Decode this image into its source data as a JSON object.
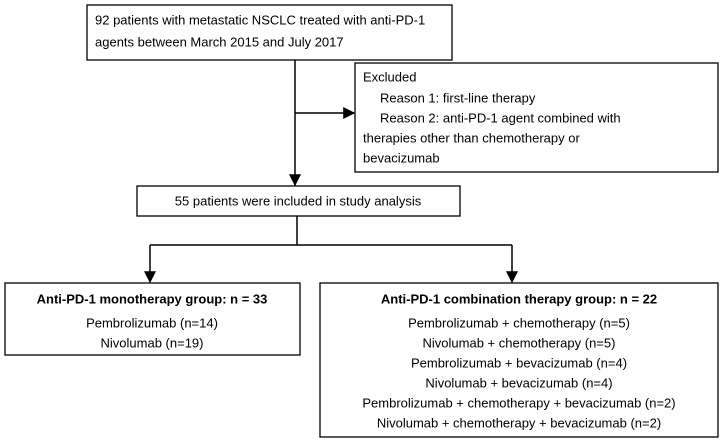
{
  "enrolled": {
    "lines": [
      "92 patients with metastatic NSCLC treated with anti-PD-1",
      "agents between March 2015 and July 2017"
    ]
  },
  "excluded": {
    "title": "Excluded",
    "reasons": [
      "Reason 1: first-line therapy",
      "Reason 2: anti-PD-1 agent combined with"
    ],
    "continuation": [
      "therapies other than chemotherapy or",
      "bevacizumab"
    ]
  },
  "included": {
    "label": "55 patients were included in study analysis"
  },
  "groups": [
    {
      "title": "Anti-PD-1 monotherapy group: n = 33",
      "items": [
        "Pembrolizumab (n=14)",
        "Nivolumab (n=19)"
      ]
    },
    {
      "title": "Anti-PD-1 combination therapy group: n = 22",
      "items": [
        "Pembrolizumab + chemotherapy (n=5)",
        "Nivolumab + chemotherapy (n=5)",
        "Pembrolizumab + bevacizumab (n=4)",
        "Nivolumab + bevacizumab (n=4)",
        "Pembrolizumab + chemotherapy + bevacizumab (n=2)",
        "Nivolumab + chemotherapy + bevacizumab (n=2)"
      ]
    }
  ]
}
